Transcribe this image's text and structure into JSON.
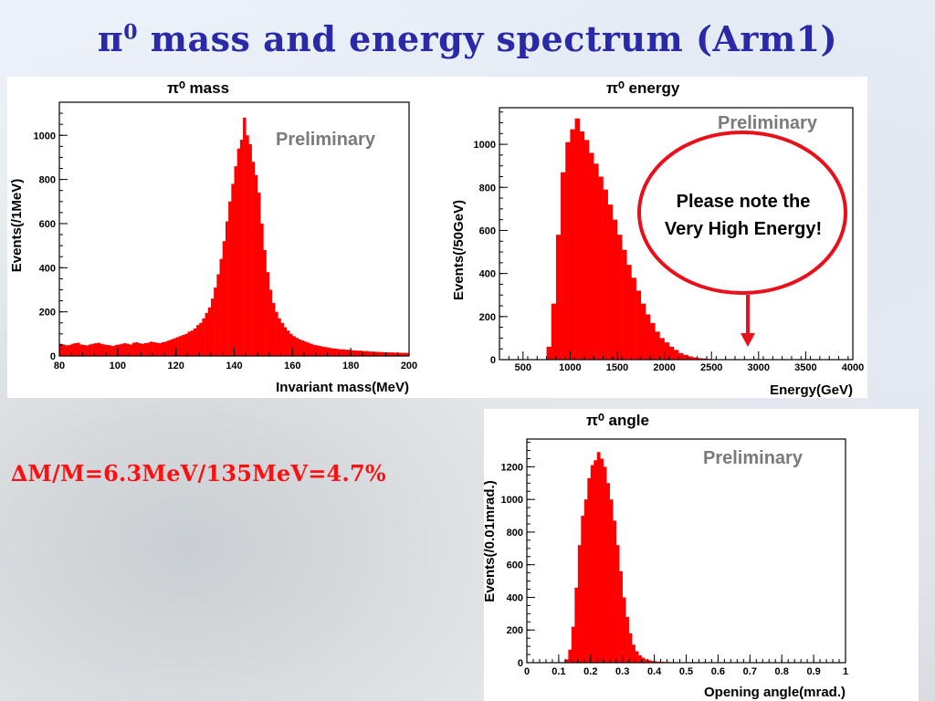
{
  "slide": {
    "title_symbol": "π",
    "title_superscript": "0",
    "title_text": " mass and energy spectrum (Arm1)",
    "resolution_text": "∆M/M=6.3MeV/135MeV=4.7%",
    "note_line1": "Please note the",
    "note_line2": "Very High Energy!",
    "watermark": "Preliminary",
    "colors": {
      "title": "#2a2aa8",
      "histogram": "#ff0000",
      "note_border": "#e8101a",
      "resolution": "#ff0f0f"
    }
  },
  "chart_data": [
    {
      "type": "bar",
      "title": "π⁰ mass",
      "xlabel": "Invariant mass(MeV)",
      "ylabel": "Events(/1MeV)",
      "xlim": [
        80,
        200
      ],
      "ylim": [
        0,
        1150
      ],
      "xticks": [
        80,
        100,
        120,
        140,
        160,
        180,
        200
      ],
      "yticks": [
        0,
        200,
        400,
        600,
        800,
        1000
      ],
      "bin_width": 1,
      "x_start": 80,
      "values": [
        55,
        52,
        48,
        50,
        55,
        58,
        60,
        52,
        50,
        48,
        52,
        55,
        58,
        60,
        55,
        52,
        50,
        48,
        45,
        50,
        52,
        55,
        58,
        55,
        52,
        60,
        62,
        58,
        55,
        58,
        60,
        65,
        62,
        60,
        58,
        62,
        65,
        70,
        75,
        80,
        85,
        90,
        95,
        100,
        110,
        115,
        125,
        140,
        150,
        170,
        195,
        220,
        260,
        310,
        370,
        440,
        520,
        610,
        700,
        780,
        860,
        940,
        980,
        1080,
        1000,
        960,
        880,
        820,
        740,
        600,
        480,
        380,
        300,
        240,
        200,
        170,
        150,
        130,
        115,
        100,
        90,
        82,
        75,
        70,
        65,
        60,
        55,
        50,
        48,
        45,
        42,
        40,
        38,
        35,
        34,
        32,
        30,
        30,
        28,
        28,
        26,
        25,
        24,
        24,
        22,
        22,
        20,
        20,
        19,
        18,
        18,
        17,
        17,
        16,
        16,
        15,
        15,
        14,
        14,
        14
      ]
    },
    {
      "type": "bar",
      "title": "π⁰ energy",
      "xlabel": "Energy(GeV)",
      "ylabel": "Events(/50GeV)",
      "xlim": [
        250,
        4000
      ],
      "ylim": [
        0,
        1170
      ],
      "xticks": [
        500,
        1000,
        1500,
        2000,
        2500,
        3000,
        3500,
        4000
      ],
      "yticks": [
        0,
        200,
        400,
        600,
        800,
        1000
      ],
      "bin_width": 50,
      "x_start": 250,
      "values": [
        0,
        0,
        0,
        0,
        0,
        0,
        0,
        0,
        0,
        0,
        60,
        260,
        580,
        870,
        1010,
        1070,
        1120,
        1060,
        1020,
        960,
        910,
        850,
        790,
        720,
        650,
        580,
        510,
        440,
        380,
        320,
        260,
        210,
        170,
        130,
        100,
        80,
        60,
        45,
        30,
        22,
        15,
        10,
        7,
        5,
        3,
        2,
        2,
        1,
        1,
        1,
        0,
        0,
        0,
        0,
        0,
        0,
        0,
        0,
        0,
        0,
        0,
        0,
        0,
        0,
        0,
        0,
        0,
        0,
        0,
        0,
        0,
        0,
        0,
        0,
        0
      ]
    },
    {
      "type": "bar",
      "title": "π⁰ angle",
      "xlabel": "Opening angle(mrad.)",
      "ylabel": "Events(/0.01mrad.)",
      "xlim": [
        0,
        1
      ],
      "ylim": [
        0,
        1370
      ],
      "xticks": [
        0,
        0.1,
        0.2,
        0.3,
        0.4,
        0.5,
        0.6,
        0.7,
        0.8,
        0.9,
        1
      ],
      "yticks": [
        0,
        200,
        400,
        600,
        800,
        1000,
        1200
      ],
      "bin_width": 0.01,
      "x_start": 0,
      "values": [
        0,
        0,
        0,
        0,
        0,
        0,
        0,
        0,
        0,
        0,
        0,
        0,
        20,
        80,
        220,
        460,
        720,
        900,
        1000,
        1130,
        1210,
        1240,
        1290,
        1250,
        1200,
        1100,
        1000,
        870,
        720,
        560,
        400,
        280,
        180,
        110,
        70,
        45,
        30,
        20,
        15,
        10,
        8,
        6,
        5,
        4,
        4,
        3,
        3,
        2,
        2,
        2,
        2,
        1,
        1,
        1,
        1,
        1,
        1,
        1,
        0,
        0,
        0,
        0,
        0,
        0,
        0,
        0,
        0,
        0,
        0,
        0,
        0,
        0,
        0,
        0,
        0,
        0,
        0,
        0,
        0,
        0,
        0,
        0,
        0,
        0,
        0,
        0,
        0,
        0,
        0,
        0,
        0,
        0,
        0,
        0,
        0,
        0,
        0,
        0,
        0,
        0
      ]
    }
  ]
}
